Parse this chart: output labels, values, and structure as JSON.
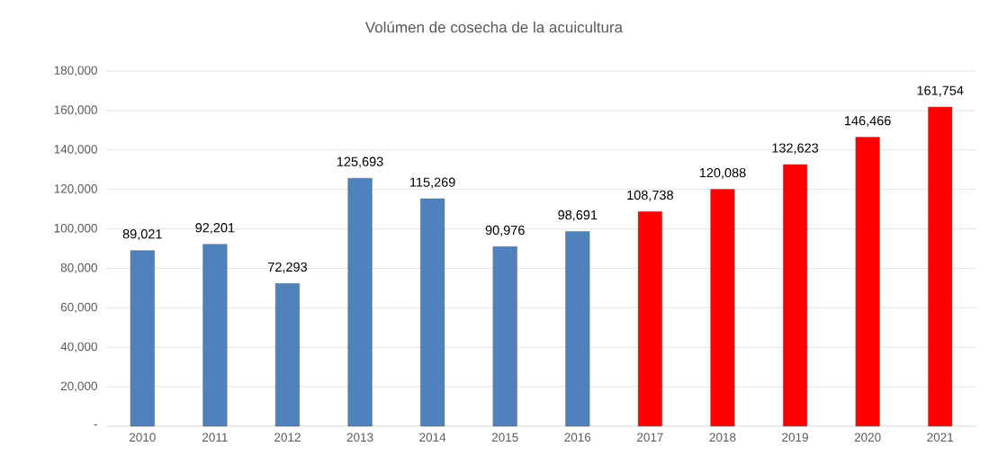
{
  "chart_data": {
    "type": "bar",
    "title": "Volúmen de cosecha de la acuicultura",
    "categories": [
      "2010",
      "2011",
      "2012",
      "2013",
      "2014",
      "2015",
      "2016",
      "2017",
      "2018",
      "2019",
      "2020",
      "2021"
    ],
    "values": [
      89021,
      92201,
      72293,
      125693,
      115269,
      90976,
      98691,
      108738,
      120088,
      132623,
      146466,
      161754
    ],
    "value_labels": [
      "89,021",
      "92,201",
      "72,293",
      "125,693",
      "115,269",
      "90,976",
      "98,691",
      "108,738",
      "120,088",
      "132,623",
      "146,466",
      "161,754"
    ],
    "colors": [
      "#4f81bd",
      "#4f81bd",
      "#4f81bd",
      "#4f81bd",
      "#4f81bd",
      "#4f81bd",
      "#4f81bd",
      "#ff0000",
      "#ff0000",
      "#ff0000",
      "#ff0000",
      "#ff0000"
    ],
    "ylim": [
      0,
      180000
    ],
    "yticks": [
      {
        "value": 0,
        "label": "-"
      },
      {
        "value": 20000,
        "label": "20,000"
      },
      {
        "value": 40000,
        "label": "40,000"
      },
      {
        "value": 60000,
        "label": "60,000"
      },
      {
        "value": 80000,
        "label": "80,000"
      },
      {
        "value": 100000,
        "label": "100,000"
      },
      {
        "value": 120000,
        "label": "120,000"
      },
      {
        "value": 140000,
        "label": "140,000"
      },
      {
        "value": 160000,
        "label": "160,000"
      },
      {
        "value": 180000,
        "label": "180,000"
      }
    ],
    "grid": "y"
  }
}
